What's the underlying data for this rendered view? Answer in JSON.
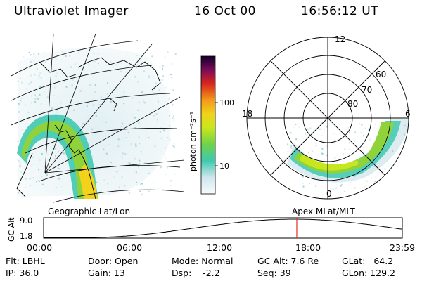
{
  "header": {
    "instrument": "Ultraviolet Imager",
    "date": "16 Oct 00",
    "time": "16:56:12 UT"
  },
  "colorbar": {
    "unit_label": "photon cm⁻²s⁻¹",
    "ticks": [
      "100",
      "10"
    ]
  },
  "polar": {
    "mlat_labels": [
      "60",
      "70",
      "80"
    ],
    "mlt_labels": [
      "12",
      "18",
      "6",
      "0"
    ],
    "title": "Apex MLat/MLT"
  },
  "geo": {
    "title": "Geographic Lat/Lon"
  },
  "altitude_plot": {
    "axis_label": "GC Alt",
    "y_ticks": [
      "9.0",
      "1.8"
    ],
    "time_ticks": [
      "00:00",
      "06:00",
      "12:00",
      "18:00",
      "23:59"
    ],
    "current_marker_hour": 16.94
  },
  "info": {
    "flt": "Flt: LBHL",
    "ip": "IP: 36.0",
    "door": "Door: Open",
    "gain": "Gain: 13",
    "mode": "Mode: Normal",
    "dsp": "Dsp:    -2.2",
    "gc_alt": "GC Alt: 7.6 Re",
    "seq": "Seq: 39",
    "glat": "GLat:   64.2",
    "glon": "GLon: 129.2"
  },
  "colors": {
    "marker": "#e03020",
    "aurora_peak": "#f2d21a",
    "aurora_mid": "#8fd23a",
    "aurora_low": "#3ec9b0",
    "aurora_faint": "#cfe6ec"
  }
}
